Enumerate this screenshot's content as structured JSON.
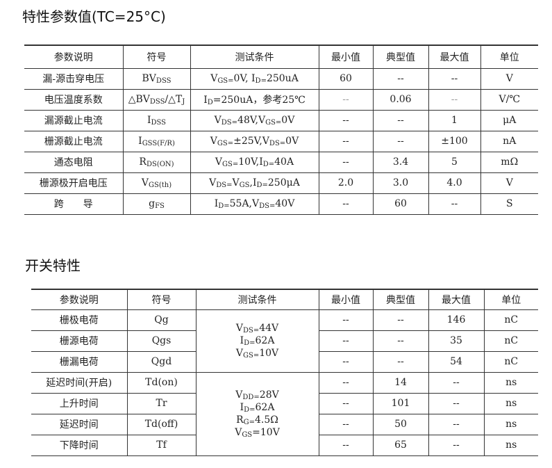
{
  "section1": {
    "title": "特性参数值(TC=25°C)",
    "headers": [
      "参数说明",
      "符号",
      "测试条件",
      "最小值",
      "典型值",
      "最大值",
      "单位"
    ],
    "rows": [
      {
        "param": "漏-源击穿电压",
        "symbol": "BV_{DSS}",
        "cond": "V_{GS=}0V, I_{D=}250uA",
        "min": "60",
        "typ": "--",
        "max": "--",
        "unit": "V"
      },
      {
        "param": "电压温度系数",
        "symbol": "△BV_{DSS}/△T_{J}",
        "cond": "I_{D}=250uA，参考25℃",
        "min": "--",
        "typ": "0.06",
        "max": "--",
        "unit": "V/℃"
      },
      {
        "param": "漏源截止电流",
        "symbol": "I_{DSS}",
        "cond": "V_{DS=}48V,V_{GS=}0V",
        "min": "--",
        "typ": "--",
        "max": "1",
        "unit": "μA"
      },
      {
        "param": "栅源截止电流",
        "symbol": "I_{GSS(F/R)}",
        "cond": "V_{GS=}±25V,V_{DS=}0V",
        "min": "--",
        "typ": "--",
        "max": "±100",
        "unit": "nA"
      },
      {
        "param": "通态电阻",
        "symbol": "R_{DS(ON)}",
        "cond": "V_{GS=}10V,I_{D=}40A",
        "min": "--",
        "typ": "3.4",
        "max": "5",
        "unit": "mΩ"
      },
      {
        "param": "栅源极开启电压",
        "symbol": "V_{GS(th)}",
        "cond": "V_{DS=}V_{GS},I_{D=}250μA",
        "min": "2.0",
        "typ": "3.0",
        "max": "4.0",
        "unit": "V"
      },
      {
        "param": "跨　　导",
        "symbol": "g_{FS}",
        "cond": "I_{D=}55A,V_{DS=}40V",
        "min": "--",
        "typ": "60",
        "max": "--",
        "unit": "S"
      }
    ]
  },
  "section2": {
    "title": "开关特性",
    "headers": [
      "参数说明",
      "符号",
      "测试条件",
      "最小值",
      "典型值",
      "最大值",
      "单位"
    ],
    "cond_group1": [
      "V_{DS=}44V",
      "I_{D=}62A",
      "V_{GS=}10V"
    ],
    "cond_group2": [
      "V_{DD=}28V",
      "I_{D=}62A",
      "R_{G=}4.5Ω",
      "V_{GS}=10V"
    ],
    "rows": [
      {
        "param": "栅极电荷",
        "symbol": "Qg",
        "min": "--",
        "typ": "--",
        "max": "146",
        "unit": "nC"
      },
      {
        "param": "栅源电荷",
        "symbol": "Qgs",
        "min": "--",
        "typ": "--",
        "max": "35",
        "unit": "nC"
      },
      {
        "param": "栅漏电荷",
        "symbol": "Qgd",
        "min": "--",
        "typ": "--",
        "max": "54",
        "unit": "nC"
      },
      {
        "param": "延迟时间(开启)",
        "symbol": "Td(on)",
        "min": "--",
        "typ": "14",
        "max": "--",
        "unit": "ns"
      },
      {
        "param": "上升时间",
        "symbol": "Tr",
        "min": "--",
        "typ": "101",
        "max": "--",
        "unit": "ns"
      },
      {
        "param": "延迟时间",
        "symbol": "Td(off)",
        "min": "--",
        "typ": "50",
        "max": "--",
        "unit": "ns"
      },
      {
        "param": "下降时间",
        "symbol": "Tf",
        "min": "--",
        "typ": "65",
        "max": "--",
        "unit": "ns"
      }
    ]
  }
}
